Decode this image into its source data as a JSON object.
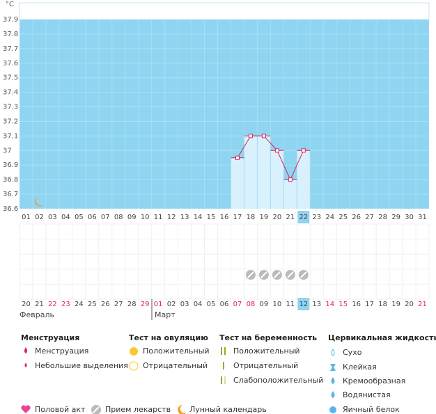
{
  "chart_data": {
    "type": "line",
    "y_label": "°C",
    "categories": [
      "01",
      "02",
      "03",
      "04",
      "05",
      "06",
      "07",
      "08",
      "09",
      "10",
      "11",
      "12",
      "13",
      "14",
      "15",
      "16",
      "17",
      "18",
      "19",
      "20",
      "21",
      "22",
      "23",
      "24",
      "25",
      "26",
      "27",
      "28",
      "29",
      "30",
      "31"
    ],
    "values": [
      null,
      null,
      null,
      null,
      null,
      null,
      null,
      null,
      null,
      null,
      null,
      null,
      null,
      null,
      null,
      null,
      36.95,
      37.1,
      37.1,
      37,
      36.8,
      37,
      null,
      null,
      null,
      null,
      null,
      null,
      null,
      null,
      null
    ],
    "ylim": [
      36.6,
      37.9
    ],
    "yticks": [
      36.6,
      36.7,
      36.8,
      36.9,
      37,
      37.1,
      37.2,
      37.3,
      37.4,
      37.5,
      37.6,
      37.7,
      37.8,
      37.9
    ],
    "color": "#d6245e",
    "bar_color": "#d9f1fc",
    "background": "#8fd5f2",
    "grid": true,
    "cycle_dates": [
      {
        "text": "20",
        "color": "#444"
      },
      {
        "text": "21",
        "color": "#444"
      },
      {
        "text": "22",
        "color": "#e0245e"
      },
      {
        "text": "23",
        "color": "#e0245e"
      },
      {
        "text": "24",
        "color": "#444"
      },
      {
        "text": "25",
        "color": "#444"
      },
      {
        "text": "26",
        "color": "#444"
      },
      {
        "text": "27",
        "color": "#444"
      },
      {
        "text": "28",
        "color": "#444"
      },
      {
        "text": "29",
        "color": "#e0245e"
      },
      {
        "text": "01",
        "color": "#e0245e"
      },
      {
        "text": "02",
        "color": "#444"
      },
      {
        "text": "03",
        "color": "#444"
      },
      {
        "text": "04",
        "color": "#444"
      },
      {
        "text": "05",
        "color": "#444"
      },
      {
        "text": "06",
        "color": "#444"
      },
      {
        "text": "07",
        "color": "#e0245e"
      },
      {
        "text": "08",
        "color": "#e0245e"
      },
      {
        "text": "09",
        "color": "#444"
      },
      {
        "text": "10",
        "color": "#444"
      },
      {
        "text": "11",
        "color": "#444"
      },
      {
        "text": "12",
        "color": "#444"
      },
      {
        "text": "13",
        "color": "#444"
      },
      {
        "text": "14",
        "color": "#e0245e"
      },
      {
        "text": "15",
        "color": "#e0245e"
      },
      {
        "text": "16",
        "color": "#444"
      },
      {
        "text": "17",
        "color": "#444"
      },
      {
        "text": "18",
        "color": "#444"
      },
      {
        "text": "19",
        "color": "#444"
      },
      {
        "text": "20",
        "color": "#444"
      },
      {
        "text": "21",
        "color": "#e0245e"
      }
    ],
    "months": [
      "Февраль",
      "Март"
    ]
  },
  "legend": {
    "menstruation": {
      "title": "Менструация",
      "items": [
        "Менструация",
        "Небольшие выделения"
      ]
    },
    "ovulation": {
      "title": "Тест на овуляцию",
      "items": [
        "Положительный",
        "Отрицательный"
      ]
    },
    "pregnancy": {
      "title": "Тест на беременность",
      "items": [
        "Положительный",
        "Отрицательный",
        "Слабоположительный"
      ]
    },
    "cervical": {
      "title": "Цервикальная жидкость",
      "items": [
        "Сухо",
        "Клейкая",
        "Кремообразная",
        "Водянистая",
        "Яичный белок"
      ]
    },
    "other": [
      "Половой акт",
      "Прием лекарств",
      "Лунный календарь"
    ]
  }
}
